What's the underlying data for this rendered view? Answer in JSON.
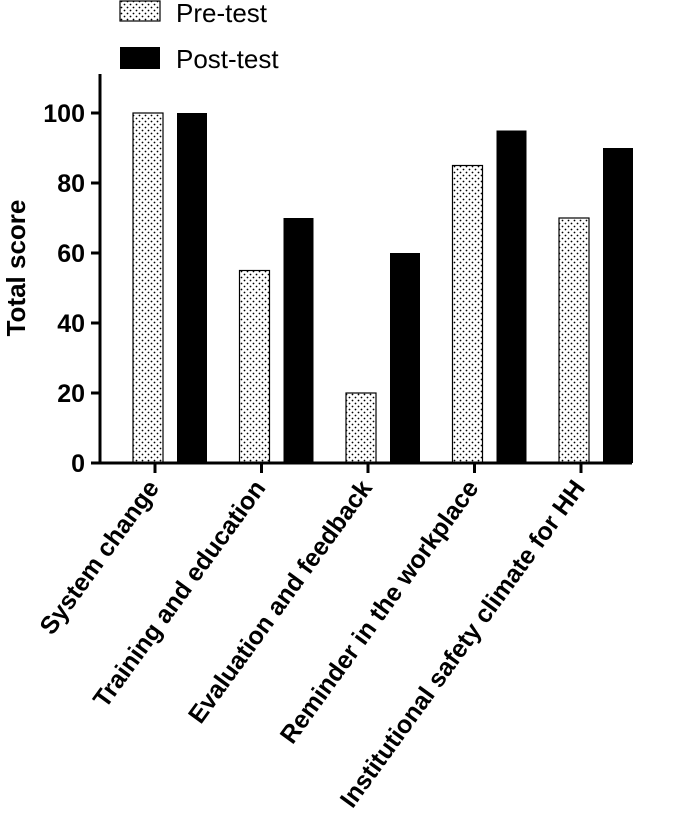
{
  "chart_data": {
    "type": "bar",
    "title": "",
    "xlabel": "",
    "ylabel": "Total score",
    "ylim": [
      0,
      110
    ],
    "yticks": [
      0,
      20,
      40,
      60,
      80,
      100
    ],
    "grid": false,
    "legend_position": "top-left",
    "categories": [
      "System change",
      "Training and education",
      "Evaluation and feedback",
      "Reminder in the workplace",
      "Institutional safety climate for HH"
    ],
    "series": [
      {
        "name": "Pre-test",
        "fill": "dotted",
        "values": [
          100,
          55,
          20,
          85,
          70
        ]
      },
      {
        "name": "Post-test",
        "fill": "solid",
        "values": [
          100,
          70,
          60,
          95,
          90
        ]
      }
    ]
  },
  "colors": {
    "axis": "#000000",
    "solid_bar": "#000000",
    "dotted_bg": "#ffffff"
  }
}
